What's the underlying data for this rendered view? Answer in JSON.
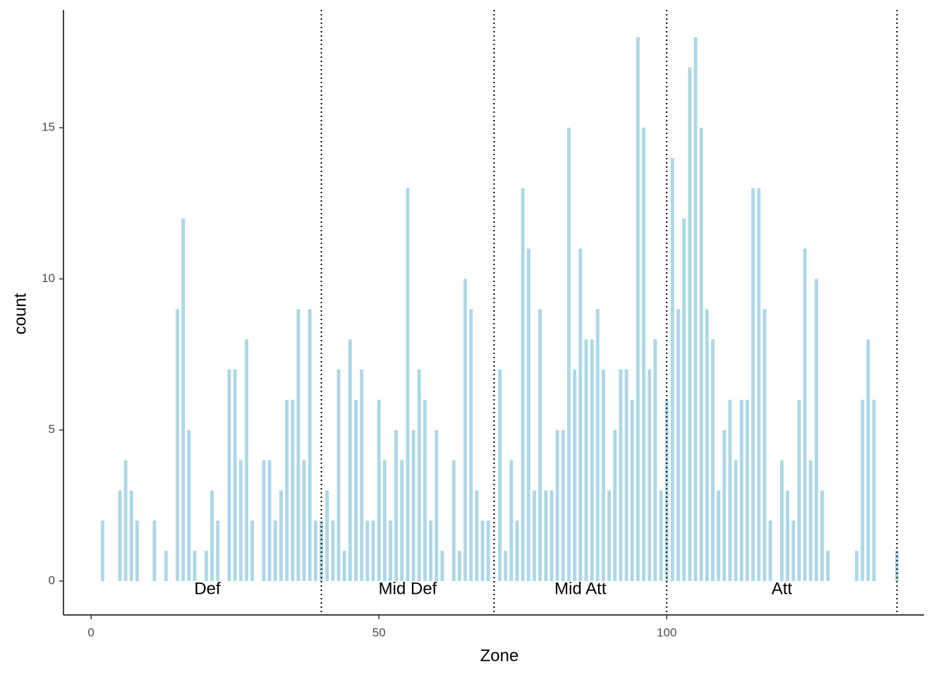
{
  "chart_data": {
    "type": "bar",
    "x": [
      2,
      5,
      6,
      7,
      8,
      11,
      13,
      15,
      16,
      17,
      18,
      20,
      21,
      22,
      24,
      25,
      26,
      27,
      28,
      30,
      31,
      32,
      33,
      34,
      35,
      36,
      37,
      38,
      39,
      40,
      41,
      42,
      43,
      44,
      45,
      46,
      47,
      48,
      49,
      50,
      51,
      52,
      53,
      54,
      55,
      56,
      57,
      58,
      59,
      60,
      61,
      63,
      64,
      65,
      66,
      67,
      68,
      69,
      71,
      72,
      73,
      74,
      75,
      76,
      77,
      78,
      79,
      80,
      81,
      82,
      83,
      84,
      85,
      86,
      87,
      88,
      89,
      90,
      91,
      92,
      93,
      94,
      95,
      96,
      97,
      98,
      99,
      100,
      101,
      102,
      103,
      104,
      105,
      106,
      107,
      108,
      109,
      110,
      111,
      112,
      113,
      114,
      115,
      116,
      117,
      118,
      120,
      121,
      122,
      123,
      124,
      125,
      126,
      127,
      128,
      133,
      134,
      135,
      136,
      140
    ],
    "values": [
      2,
      3,
      4,
      3,
      2,
      2,
      1,
      9,
      12,
      5,
      1,
      1,
      3,
      2,
      7,
      7,
      4,
      8,
      2,
      4,
      4,
      2,
      3,
      6,
      6,
      9,
      4,
      9,
      2,
      2,
      3,
      2,
      7,
      1,
      8,
      6,
      7,
      2,
      2,
      6,
      4,
      2,
      5,
      4,
      13,
      5,
      7,
      6,
      2,
      5,
      1,
      4,
      1,
      10,
      9,
      3,
      2,
      2,
      7,
      1,
      4,
      2,
      13,
      11,
      3,
      9,
      3,
      3,
      5,
      5,
      15,
      7,
      11,
      8,
      8,
      9,
      7,
      3,
      5,
      7,
      7,
      6,
      18,
      15,
      7,
      8,
      3,
      6,
      14,
      9,
      12,
      17,
      18,
      15,
      9,
      8,
      3,
      5,
      6,
      4,
      6,
      6,
      13,
      13,
      9,
      2,
      4,
      3,
      2,
      6,
      11,
      4,
      10,
      3,
      1,
      1,
      6,
      8,
      6,
      1
    ],
    "color": "#add8e6",
    "x_label": "Zone",
    "y_label": "count",
    "xlim": [
      -4.8,
      144.7
    ],
    "ylim": [
      -1.12,
      18.9
    ],
    "xticks": [
      0,
      50,
      100
    ],
    "yticks": [
      0,
      5,
      10,
      15
    ],
    "vlines": [
      40,
      70,
      100,
      140
    ],
    "annotations": [
      {
        "label": "Def",
        "x": 20.2,
        "y": -0.28
      },
      {
        "label": "Mid Def",
        "x": 55,
        "y": -0.28
      },
      {
        "label": "Mid Att",
        "x": 85,
        "y": -0.28
      },
      {
        "label": "Att",
        "x": 120,
        "y": -0.28
      }
    ]
  }
}
